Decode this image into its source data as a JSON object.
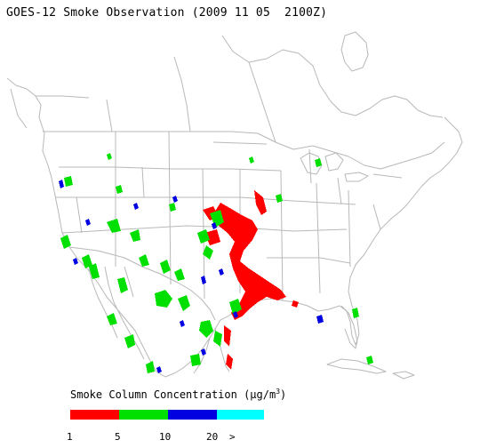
{
  "title": "GOES-12 Smoke Observation (2009 11 05  2100Z)",
  "legend": {
    "title_prefix": "Smoke Column Concentration (",
    "title_unit_mu": "μ",
    "title_unit_rest": "g/m",
    "title_unit_sup": "3",
    "title_suffix": ")",
    "bins": [
      {
        "label": "1",
        "color": "#ff0000"
      },
      {
        "label": "5",
        "color": "#00e000"
      },
      {
        "label": "10",
        "color": "#0000e0"
      },
      {
        "label": "20",
        "color": "#00ffff"
      }
    ],
    "overflow_label": ">"
  },
  "colors": {
    "boundary": "#b8b8b8",
    "smoke_low": "#ff0000",
    "smoke_mid": "#00e000",
    "smoke_high": "#0000e0"
  }
}
